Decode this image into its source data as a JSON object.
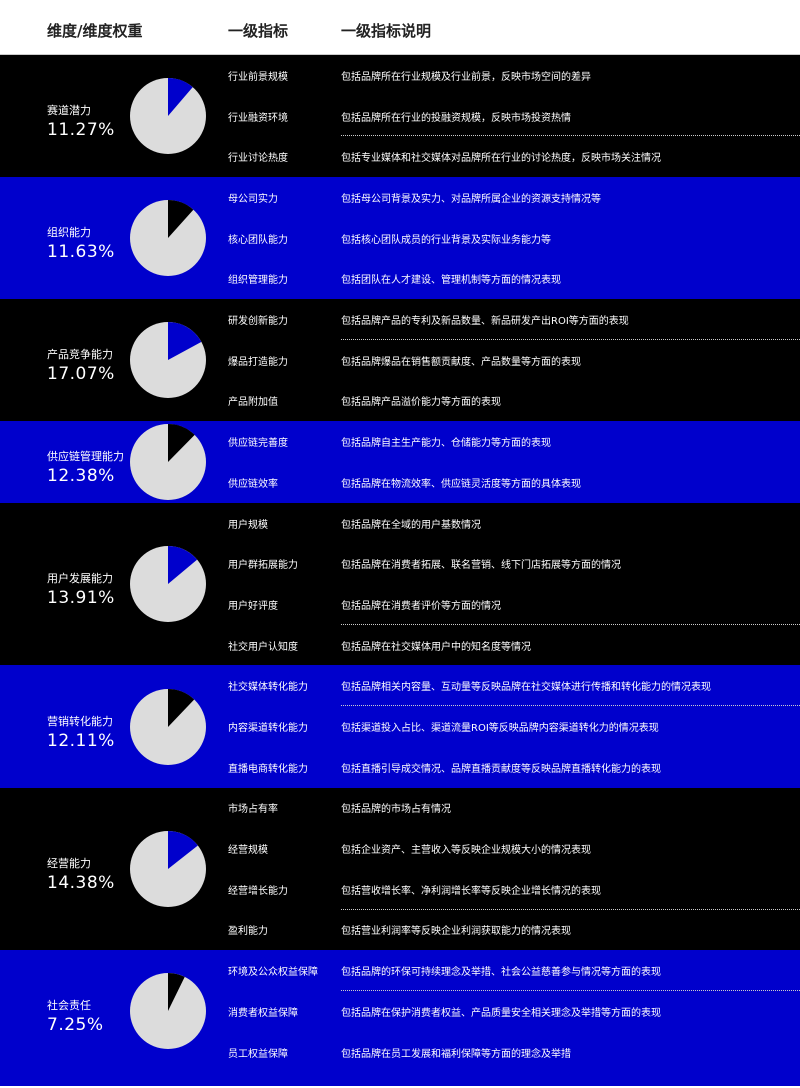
{
  "header": {
    "col1": "维度/维度权重",
    "col2": "一级指标",
    "col3": "一级指标说明"
  },
  "colors": {
    "blue": "#0000cc",
    "black": "#000000",
    "pie_gray": "#dcdcdc"
  },
  "sections": [
    {
      "name": "赛道潜力",
      "weight": "11.27%",
      "weight_value": 11.27,
      "theme": "black",
      "rows": [
        {
          "indicator": "行业前景规模",
          "desc": "包括品牌所在行业规模及行业前景，反映市场空间的差异"
        },
        {
          "indicator": "行业融资环境",
          "desc": "包括品牌所在行业的投融资规模，反映市场投资热情",
          "divider_after": true
        },
        {
          "indicator": "行业讨论热度",
          "desc": "包括专业媒体和社交媒体对品牌所在行业的讨论热度，反映市场关注情况"
        }
      ]
    },
    {
      "name": "组织能力",
      "weight": "11.63%",
      "weight_value": 11.63,
      "theme": "blue",
      "rows": [
        {
          "indicator": "母公司实力",
          "desc": "包括母公司背景及实力、对品牌所属企业的资源支持情况等"
        },
        {
          "indicator": "核心团队能力",
          "desc": "包括核心团队成员的行业背景及实际业务能力等"
        },
        {
          "indicator": "组织管理能力",
          "desc": "包括团队在人才建设、管理机制等方面的情况表现"
        }
      ]
    },
    {
      "name": "产品竞争能力",
      "weight": "17.07%",
      "weight_value": 17.07,
      "theme": "black",
      "rows": [
        {
          "indicator": "研发创新能力",
          "desc": "包括品牌产品的专利及新品数量、新品研发产出ROI等方面的表现",
          "divider_after": true
        },
        {
          "indicator": "爆品打造能力",
          "desc": "包括品牌爆品在销售额贡献度、产品数量等方面的表现"
        },
        {
          "indicator": "产品附加值",
          "desc": "包括品牌产品溢价能力等方面的表现"
        }
      ]
    },
    {
      "name": "供应链管理能力",
      "weight": "12.38%",
      "weight_value": 12.38,
      "theme": "blue",
      "rows": [
        {
          "indicator": "供应链完善度",
          "desc": "包括品牌自主生产能力、仓储能力等方面的表现"
        },
        {
          "indicator": "供应链效率",
          "desc": "包括品牌在物流效率、供应链灵活度等方面的具体表现"
        }
      ]
    },
    {
      "name": "用户发展能力",
      "weight": "13.91%",
      "weight_value": 13.91,
      "theme": "black",
      "rows": [
        {
          "indicator": "用户规模",
          "desc": "包括品牌在全域的用户基数情况"
        },
        {
          "indicator": "用户群拓展能力",
          "desc": "包括品牌在消费者拓展、联名营销、线下门店拓展等方面的情况"
        },
        {
          "indicator": "用户好评度",
          "desc": "包括品牌在消费者评价等方面的情况",
          "divider_after": true
        },
        {
          "indicator": "社交用户认知度",
          "desc": "包括品牌在社交媒体用户中的知名度等情况"
        }
      ]
    },
    {
      "name": "营销转化能力",
      "weight": "12.11%",
      "weight_value": 12.11,
      "theme": "blue",
      "rows": [
        {
          "indicator": "社交媒体转化能力",
          "desc": "包括品牌相关内容量、互动量等反映品牌在社交媒体进行传播和转化能力的情况表现",
          "divider_after": true
        },
        {
          "indicator": "内容渠道转化能力",
          "desc": "包括渠道投入占比、渠道流量ROI等反映品牌内容渠道转化力的情况表现"
        },
        {
          "indicator": "直播电商转化能力",
          "desc": "包括直播引导成交情况、品牌直播贡献度等反映品牌直播转化能力的表现"
        }
      ]
    },
    {
      "name": "经营能力",
      "weight": "14.38%",
      "weight_value": 14.38,
      "theme": "black",
      "rows": [
        {
          "indicator": "市场占有率",
          "desc": "包括品牌的市场占有情况"
        },
        {
          "indicator": "经营规模",
          "desc": "包括企业资产、主营收入等反映企业规模大小的情况表现"
        },
        {
          "indicator": "经营增长能力",
          "desc": "包括营收增长率、净利润增长率等反映企业增长情况的表现",
          "divider_after": true
        },
        {
          "indicator": "盈利能力",
          "desc": "包括营业利润率等反映企业利润获取能力的情况表现"
        }
      ]
    },
    {
      "name": "社会责任",
      "weight": "7.25%",
      "weight_value": 7.25,
      "theme": "blue",
      "rows": [
        {
          "indicator": "环境及公众权益保障",
          "desc": "包括品牌的环保可持续理念及举措、社会公益慈善参与情况等方面的表现",
          "divider_after": true
        },
        {
          "indicator": "消费者权益保障",
          "desc": "包括品牌在保护消费者权益、产品质量安全相关理念及举措等方面的表现"
        },
        {
          "indicator": "员工权益保障",
          "desc": "包括品牌在员工发展和福利保障等方面的理念及举措"
        }
      ]
    }
  ]
}
